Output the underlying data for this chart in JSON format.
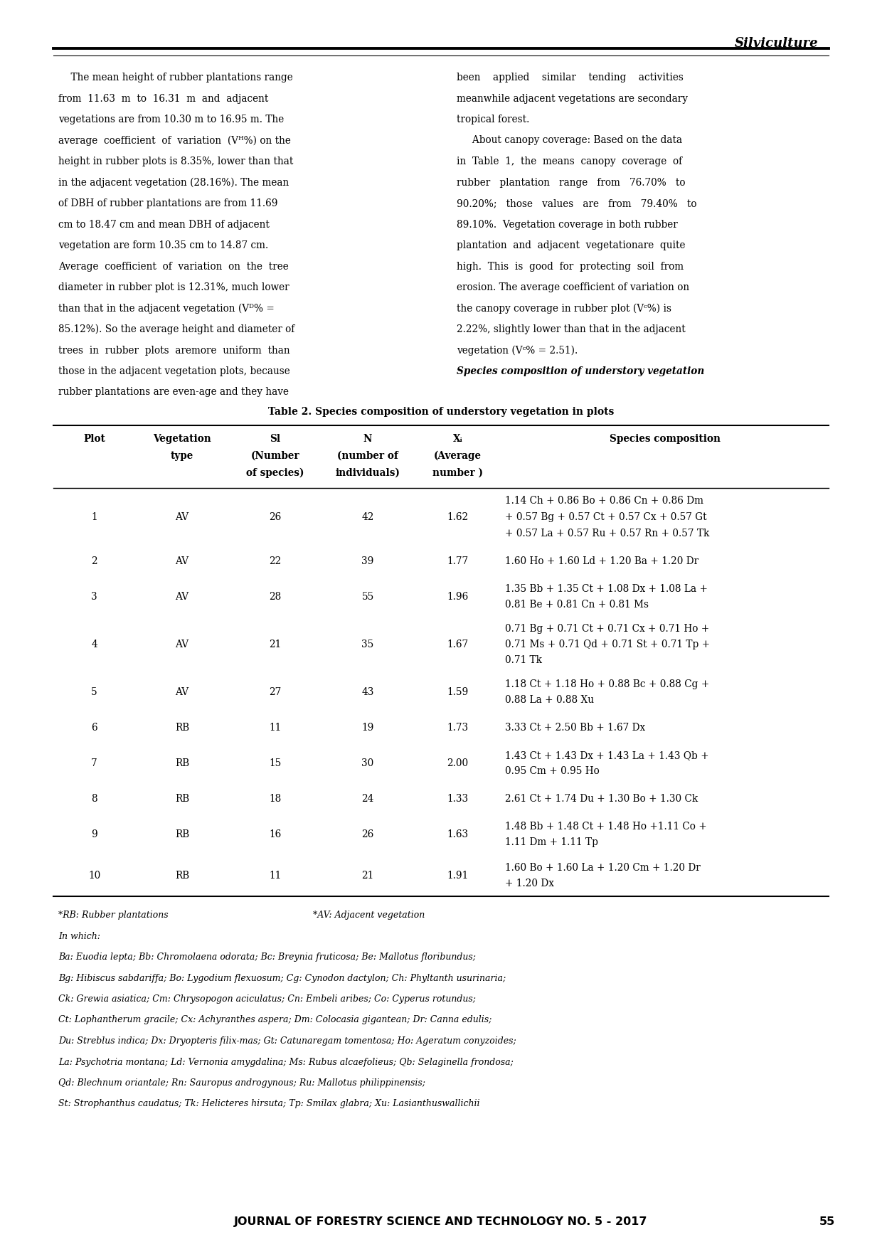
{
  "page_width": 12.4,
  "page_height": 17.53,
  "bg_color": "#ffffff",
  "header_text": "Silviculture",
  "body_left_col": [
    "    The mean height of rubber plantations range",
    "from  11.63  m  to  16.31  m  and  adjacent",
    "vegetations are from 10.30 m to 16.95 m. The",
    "average  coefficient  of  variation  (Vᴴ%) on the",
    "height in rubber plots is 8.35%, lower than that",
    "in the adjacent vegetation (28.16%). The mean",
    "of DBH of rubber plantations are from 11.69",
    "cm to 18.47 cm and mean DBH of adjacent",
    "vegetation are form 10.35 cm to 14.87 cm.",
    "Average  coefficient  of  variation  on  the  tree",
    "diameter in rubber plot is 12.31%, much lower",
    "than that in the adjacent vegetation (Vᴰ% =",
    "85.12%). So the average height and diameter of",
    "trees  in  rubber  plots  aremore  uniform  than",
    "those in the adjacent vegetation plots, because",
    "rubber plantations are even-age and they have"
  ],
  "body_right_col": [
    "been    applied    similar    tending    activities",
    "meanwhile adjacent vegetations are secondary",
    "tropical forest.",
    "     About canopy coverage: Based on the data",
    "in  Table  1,  the  means  canopy  coverage  of",
    "rubber   plantation   range   from   76.70%   to",
    "90.20%;   those   values   are   from   79.40%   to",
    "89.10%.  Vegetation coverage in both rubber",
    "plantation  and  adjacent  vegetationare  quite",
    "high.  This  is  good  for  protecting  soil  from",
    "erosion. The average coefficient of variation on",
    "the canopy coverage in rubber plot (Vᶜ%) is",
    "2.22%, slightly lower than that in the adjacent",
    "vegetation (Vᶜ% = 2.51).",
    "Species composition of understory vegetation"
  ],
  "table_title": "Table 2. Species composition of understory vegetation in plots",
  "table_rows": [
    [
      "1",
      "AV",
      "26",
      "42",
      "1.62",
      "1.14 Ch + 0.86 Bo + 0.86 Cn + 0.86 Dm\n+ 0.57 Bg + 0.57 Ct + 0.57 Cx + 0.57 Gt\n+ 0.57 La + 0.57 Ru + 0.57 Rn + 0.57 Tk"
    ],
    [
      "2",
      "AV",
      "22",
      "39",
      "1.77",
      "1.60 Ho + 1.60 Ld + 1.20 Ba + 1.20 Dr"
    ],
    [
      "3",
      "AV",
      "28",
      "55",
      "1.96",
      "1.35 Bb + 1.35 Ct + 1.08 Dx + 1.08 La +\n0.81 Be + 0.81 Cn + 0.81 Ms"
    ],
    [
      "4",
      "AV",
      "21",
      "35",
      "1.67",
      "0.71 Bg + 0.71 Ct + 0.71 Cx + 0.71 Ho +\n0.71 Ms + 0.71 Qd + 0.71 St + 0.71 Tp +\n0.71 Tk"
    ],
    [
      "5",
      "AV",
      "27",
      "43",
      "1.59",
      "1.18 Ct + 1.18 Ho + 0.88 Bc + 0.88 Cg +\n0.88 La + 0.88 Xu"
    ],
    [
      "6",
      "RB",
      "11",
      "19",
      "1.73",
      "3.33 Ct + 2.50 Bb + 1.67 Dx"
    ],
    [
      "7",
      "RB",
      "15",
      "30",
      "2.00",
      "1.43 Ct + 1.43 Dx + 1.43 La + 1.43 Qb +\n0.95 Cm + 0.95 Ho"
    ],
    [
      "8",
      "RB",
      "18",
      "24",
      "1.33",
      "2.61 Ct + 1.74 Du + 1.30 Bo + 1.30 Ck"
    ],
    [
      "9",
      "RB",
      "16",
      "26",
      "1.63",
      "1.48 Bb + 1.48 Ct + 1.48 Ho +1.11 Co +\n1.11 Dm + 1.11 Tp"
    ],
    [
      "10",
      "RB",
      "11",
      "21",
      "1.91",
      "1.60 Bo + 1.60 La + 1.20 Cm + 1.20 Dr\n+ 1.20 Dx"
    ]
  ],
  "footnote_line0a": "*RB: Rubber plantations",
  "footnote_line0b": "*AV: Adjacent vegetation",
  "footnotes": [
    "In which:",
    "Ba: Euodia lepta; Bb: Chromolaena odorata; Bc: Breynia fruticosa; Be: Mallotus floribundus;",
    "Bg: Hibiscus sabdariffa; Bo: Lygodium flexuosum; Cg: Cynodon dactylon; Ch: Phyltanth usurinaria;",
    "Ck: Grewia asiatica; Cm: Chrysopogon aciculatus; Cn: Embeli aribes; Co: Cyperus rotundus;",
    "Ct: Lophantherum gracile; Cx: Achyranthes aspera; Dm: Colocasia gigantean; Dr: Canna edulis;",
    "Du: Streblus indica; Dx: Dryopteris filix-mas; Gt: Catunaregam tomentosa; Ho: Ageratum conyzoides;",
    "La: Psychotria montana; Ld: Vernonia amygdalina; Ms: Rubus alcaefolieus; Qb: Selaginella frondosa;",
    "Qd: Blechnum oriantale; Rn: Sauropus androgynous; Ru: Mallotus philippinensis;",
    "St: Strophanthus caudatus; Tk: Helicteres hirsuta; Tp: Smilax glabra; Xu: Lasianthuswallichii"
  ],
  "footer_text": "JOURNAL OF FORESTRY SCIENCE AND TECHNOLOGY NO. 5 - 2017",
  "footer_page": "55"
}
